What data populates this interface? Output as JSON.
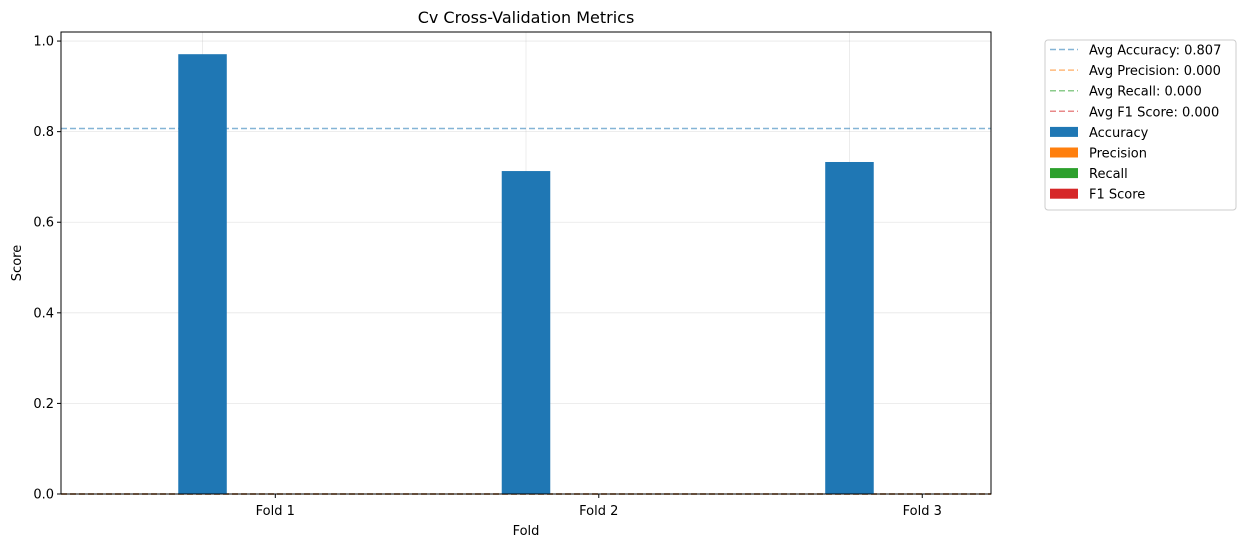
{
  "chart_data": {
    "type": "bar",
    "title": "Cv Cross-Validation Metrics",
    "xlabel": "Fold",
    "ylabel": "Score",
    "ylim": [
      0,
      1.02
    ],
    "yticks": [
      "0.0",
      "0.2",
      "0.4",
      "0.6",
      "0.8",
      "1.0"
    ],
    "ytick_values": [
      0.0,
      0.2,
      0.4,
      0.6,
      0.8,
      1.0
    ],
    "grid": true,
    "categories": [
      "Fold 1",
      "Fold 2",
      "Fold 3"
    ],
    "series": [
      {
        "name": "Accuracy",
        "color": "#1f77b4",
        "values": [
          0.971,
          0.713,
          0.733
        ]
      },
      {
        "name": "Precision",
        "color": "#ff7f0e",
        "values": [
          0.0,
          0.0,
          0.0
        ]
      },
      {
        "name": "Recall",
        "color": "#2ca02c",
        "values": [
          0.0,
          0.0,
          0.0
        ]
      },
      {
        "name": "F1 Score",
        "color": "#d62728",
        "values": [
          0.0,
          0.0,
          0.0
        ]
      }
    ],
    "averages": [
      {
        "label": "Avg Accuracy: 0.807",
        "value": 0.807,
        "color": "#1f77b4"
      },
      {
        "label": "Avg Precision: 0.000",
        "value": 0.0,
        "color": "#ff7f0e"
      },
      {
        "label": "Avg Recall: 0.000",
        "value": 0.0,
        "color": "#2ca02c"
      },
      {
        "label": "Avg F1 Score: 0.000",
        "value": 0.0,
        "color": "#d62728"
      }
    ],
    "legend_position": "outside-top-right"
  }
}
